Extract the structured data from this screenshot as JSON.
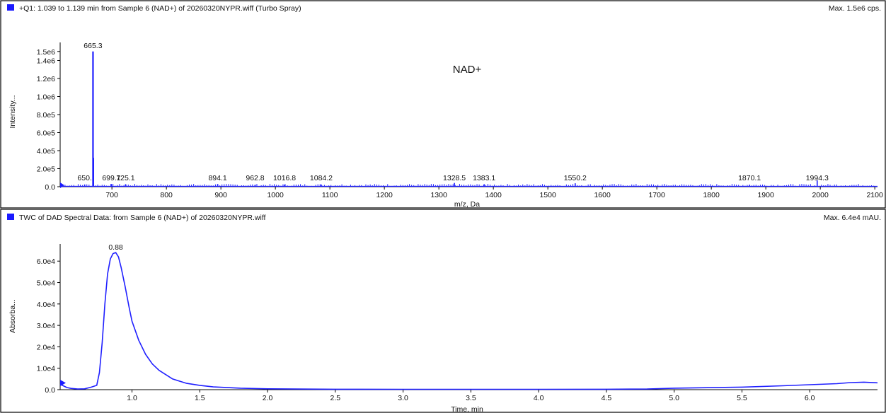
{
  "colors": {
    "trace": "#2020ff",
    "marker": "#1a1aff",
    "frame": "#000000"
  },
  "chart_data": [
    {
      "type": "line",
      "panel": "top",
      "title": "+Q1: 1.039 to 1.139 min from Sample 6 (NAD+) of 20260320NYPR.wiff (Turbo Spray)",
      "max_label": "Max. 1.5e6 cps.",
      "xlabel": "m/z, Da",
      "ylabel": "Intensity...",
      "annotation": "NAD+",
      "xlim": [
        605,
        2105
      ],
      "ylim": [
        0,
        1600000
      ],
      "x_ticks": [
        700,
        800,
        900,
        1000,
        1100,
        1200,
        1300,
        1400,
        1500,
        1600,
        1700,
        1800,
        1900,
        2000,
        2100
      ],
      "y_ticks": [
        {
          "value": 0,
          "label": "0.0"
        },
        {
          "value": 200000,
          "label": "2.0e5"
        },
        {
          "value": 400000,
          "label": "4.0e5"
        },
        {
          "value": 600000,
          "label": "6.0e5"
        },
        {
          "value": 800000,
          "label": "8.0e5"
        },
        {
          "value": 1000000,
          "label": "1.0e6"
        },
        {
          "value": 1200000,
          "label": "1.2e6"
        },
        {
          "value": 1400000,
          "label": "1.4e6"
        },
        {
          "value": 1500000,
          "label": "1.5e6"
        }
      ],
      "peaks": [
        {
          "x": 650.0,
          "y": 25000,
          "label": "650."
        },
        {
          "x": 665.3,
          "y": 1500000,
          "label": "665.3"
        },
        {
          "x": 666.3,
          "y": 320000,
          "label": ""
        },
        {
          "x": 699.1,
          "y": 30000,
          "label": "699.1"
        },
        {
          "x": 725.1,
          "y": 28000,
          "label": "725.1"
        },
        {
          "x": 894.1,
          "y": 30000,
          "label": "894.1"
        },
        {
          "x": 962.8,
          "y": 22000,
          "label": "962.8"
        },
        {
          "x": 1016.8,
          "y": 22000,
          "label": "1016.8"
        },
        {
          "x": 1084.2,
          "y": 24000,
          "label": "1084.2"
        },
        {
          "x": 1328.5,
          "y": 42000,
          "label": "1328.5"
        },
        {
          "x": 1383.1,
          "y": 28000,
          "label": "1383.1"
        },
        {
          "x": 1550.2,
          "y": 38000,
          "label": "1550.2"
        },
        {
          "x": 1870.1,
          "y": 22000,
          "label": "1870.1"
        },
        {
          "x": 1994.3,
          "y": 70000,
          "label": "1994.3"
        }
      ]
    },
    {
      "type": "line",
      "panel": "bottom",
      "title": "TWC of DAD Spectral Data: from Sample 6 (NAD+) of 20260320NYPR.wiff",
      "max_label": "Max. 6.4e4 mAU.",
      "xlabel": "Time, min",
      "ylabel": "Absorba...",
      "xlim": [
        0.47,
        6.5
      ],
      "ylim": [
        0,
        68000
      ],
      "x_ticks": [
        {
          "value": 1.0,
          "label": "1.0"
        },
        {
          "value": 1.5,
          "label": "1.5"
        },
        {
          "value": 2.0,
          "label": "2.0"
        },
        {
          "value": 2.5,
          "label": "2.5"
        },
        {
          "value": 3.0,
          "label": "3.0"
        },
        {
          "value": 3.5,
          "label": "3.5"
        },
        {
          "value": 4.0,
          "label": "4.0"
        },
        {
          "value": 4.5,
          "label": "4.5"
        },
        {
          "value": 5.0,
          "label": "5.0"
        },
        {
          "value": 5.5,
          "label": "5.5"
        },
        {
          "value": 6.0,
          "label": "6.0"
        }
      ],
      "y_ticks": [
        {
          "value": 0,
          "label": "0.0"
        },
        {
          "value": 10000,
          "label": "1.0e4"
        },
        {
          "value": 20000,
          "label": "2.0e4"
        },
        {
          "value": 30000,
          "label": "3.0e4"
        },
        {
          "value": 40000,
          "label": "4.0e4"
        },
        {
          "value": 50000,
          "label": "5.0e4"
        },
        {
          "value": 60000,
          "label": "6.0e4"
        }
      ],
      "peak_label": {
        "x": 0.88,
        "y": 64000,
        "label": "0.88"
      },
      "series": [
        {
          "x": [
            0.47,
            0.52,
            0.55,
            0.6,
            0.65,
            0.7,
            0.74,
            0.76,
            0.78,
            0.8,
            0.82,
            0.84,
            0.86,
            0.88,
            0.9,
            0.92,
            0.95,
            0.98,
            1.0,
            1.05,
            1.1,
            1.15,
            1.2,
            1.3,
            1.4,
            1.5,
            1.6,
            1.8,
            2.0,
            2.5,
            3.0,
            3.5,
            4.0,
            4.5,
            4.8,
            5.0,
            5.2,
            5.5,
            5.8,
            6.0,
            6.2,
            6.3,
            6.4,
            6.5
          ],
          "y": [
            2500,
            1000,
            600,
            300,
            400,
            1200,
            2000,
            8000,
            22000,
            40000,
            54000,
            61000,
            63500,
            64000,
            62000,
            57000,
            48000,
            38000,
            32000,
            23000,
            16500,
            12000,
            9000,
            5000,
            3000,
            2000,
            1300,
            700,
            400,
            200,
            150,
            150,
            150,
            200,
            300,
            700,
            900,
            1200,
            1800,
            2300,
            2800,
            3300,
            3500,
            3200
          ]
        }
      ]
    }
  ]
}
